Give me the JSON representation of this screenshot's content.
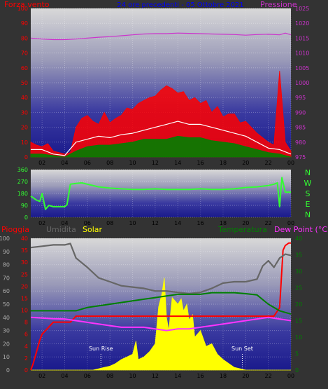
{
  "header": {
    "left_label": "Forza vento",
    "title": "24 ore precedenti - 05 Ottobre 2021",
    "right_label": "Pressione"
  },
  "direction_labels": [
    "N",
    "W",
    "S",
    "E",
    "N"
  ],
  "bottom_header": {
    "rain": "Pioggia",
    "humidity": "Umidita",
    "solar": "Solar",
    "temperature": "Temperatura",
    "dewpoint": "Dew Point (°C)"
  },
  "annotations": {
    "sunrise": "Sun Rise",
    "sunset": "Sun Set"
  },
  "colors": {
    "background": "#333333",
    "wind_gust": "#ff0000",
    "wind_avg": "#ffffff",
    "wind_min": "#008000",
    "pressure": "#cc33cc",
    "direction": "#33ff33",
    "rain": "#ff0000",
    "humidity": "#666666",
    "solar": "#ffff00",
    "temperature": "#008000",
    "dewpoint": "#ff33ff",
    "title": "#0000ff"
  },
  "chart_data": [
    {
      "type": "line",
      "title": "24 ore precedenti - 05 Ottobre 2021",
      "x_ticks": [
        "02",
        "04",
        "06",
        "08",
        "10",
        "12",
        "14",
        "16",
        "18",
        "20",
        "22",
        "00"
      ],
      "xlim": [
        1,
        24
      ],
      "ylabel": "Forza vento",
      "ylim": [
        0,
        100
      ],
      "y_ticks": [
        0,
        10,
        20,
        30,
        40,
        50,
        60,
        70,
        80,
        90,
        100
      ],
      "y2label": "Pressione",
      "y2lim": [
        975,
        1025
      ],
      "y2_ticks": [
        975,
        980,
        985,
        990,
        995,
        1000,
        1005,
        1010,
        1015,
        1020,
        1025
      ],
      "series": [
        {
          "name": "Pressione",
          "axis": "y2",
          "x": [
            1,
            2,
            3,
            4,
            5,
            6,
            7,
            8,
            9,
            10,
            11,
            12,
            13,
            14,
            15,
            16,
            17,
            18,
            19,
            20,
            21,
            22,
            23,
            23.5,
            24
          ],
          "values": [
            1015,
            1014.7,
            1014.5,
            1014.5,
            1014.7,
            1015,
            1015.3,
            1015.5,
            1015.8,
            1016.1,
            1016.4,
            1016.5,
            1016.5,
            1016.7,
            1016.6,
            1016.5,
            1016.4,
            1016.3,
            1016.2,
            1016,
            1016.2,
            1016.3,
            1016.1,
            1016.7,
            1016.1
          ]
        },
        {
          "name": "raffica",
          "x": [
            1,
            1.5,
            2,
            2.5,
            3,
            3.5,
            4,
            4.5,
            5,
            5.5,
            6,
            6.5,
            7,
            7.5,
            8,
            8.5,
            9,
            9.5,
            10,
            10.5,
            11,
            11.5,
            12,
            12.5,
            13,
            13.5,
            14,
            14.5,
            15,
            15.5,
            16,
            16.5,
            17,
            17.5,
            18,
            18.5,
            19,
            19.5,
            20,
            20.5,
            21,
            21.5,
            22,
            22.5,
            23,
            23.5,
            24
          ],
          "values": [
            10,
            8,
            7,
            9,
            4,
            3,
            2,
            3,
            20,
            26,
            28,
            24,
            22,
            30,
            23,
            26,
            28,
            33,
            32,
            36,
            38,
            40,
            41,
            45,
            48,
            46,
            43,
            44,
            38,
            40,
            36,
            38,
            30,
            34,
            27,
            29,
            29,
            23,
            24,
            20,
            16,
            13,
            10,
            8,
            58,
            10,
            4
          ]
        },
        {
          "name": "medio",
          "x": [
            1,
            2,
            3,
            4,
            5,
            6,
            7,
            8,
            9,
            10,
            11,
            12,
            13,
            14,
            15,
            16,
            17,
            18,
            19,
            20,
            21,
            22,
            23,
            24
          ],
          "values": [
            5,
            5,
            2,
            1,
            10,
            12,
            14,
            13,
            15,
            16,
            18,
            20,
            22,
            24,
            22,
            22,
            20,
            18,
            16,
            14,
            10,
            6,
            5,
            2
          ]
        },
        {
          "name": "min",
          "x": [
            1,
            2,
            3,
            4,
            5,
            6,
            7,
            8,
            9,
            10,
            11,
            12,
            13,
            14,
            15,
            16,
            17,
            18,
            19,
            20,
            21,
            22,
            23,
            24
          ],
          "values": [
            2,
            2,
            1,
            0,
            4,
            7,
            8,
            8,
            9,
            10,
            12,
            12,
            12,
            14,
            13,
            13,
            11,
            10,
            9,
            7,
            5,
            3,
            2,
            0
          ]
        }
      ]
    },
    {
      "type": "line",
      "ylabel": "direzione vento",
      "ylim": [
        0,
        360
      ],
      "y_ticks": [
        0,
        90,
        180,
        270,
        360
      ],
      "x_ticks": [
        "02",
        "04",
        "06",
        "08",
        "10",
        "12",
        "14",
        "16",
        "18",
        "20",
        "22",
        "00"
      ],
      "xlim": [
        1,
        24
      ],
      "series": [
        {
          "name": "Direzione",
          "x": [
            1,
            1.5,
            1.8,
            2,
            2.3,
            2.6,
            3,
            3.5,
            4,
            4.2,
            4.5,
            5,
            5.5,
            6,
            6.5,
            7,
            8,
            9,
            10,
            11,
            12,
            13,
            14,
            15,
            16,
            17,
            18,
            19,
            20,
            21,
            22,
            22.5,
            22.8,
            23,
            23.2,
            23.5,
            24
          ],
          "values": [
            160,
            130,
            120,
            180,
            60,
            90,
            80,
            80,
            80,
            95,
            250,
            255,
            260,
            250,
            240,
            230,
            220,
            215,
            210,
            210,
            215,
            210,
            210,
            210,
            215,
            210,
            210,
            215,
            225,
            230,
            240,
            250,
            260,
            80,
            300,
            190,
            190
          ]
        }
      ]
    },
    {
      "type": "line",
      "x_ticks": [
        "02",
        "04",
        "06",
        "08",
        "10",
        "12",
        "14",
        "16",
        "18",
        "20",
        "22",
        "00"
      ],
      "xlim": [
        1,
        24
      ],
      "axes": {
        "humidity": {
          "label": "Umidita",
          "lim": [
            0,
            100
          ],
          "ticks": [
            0,
            10,
            20,
            30,
            40,
            50,
            60,
            70,
            80,
            90,
            100
          ]
        },
        "rain": {
          "label": "Pioggia",
          "lim": [
            0,
            40
          ],
          "ticks": [
            0,
            2,
            4,
            6,
            8,
            10,
            15,
            20,
            25,
            30,
            35,
            40
          ]
        },
        "temperature": {
          "label": "Temperatura",
          "lim": [
            0,
            40
          ],
          "ticks": [
            0,
            5,
            10,
            15,
            20,
            25,
            30,
            35,
            40
          ]
        }
      },
      "series": [
        {
          "name": "Umidita",
          "axis": "humidity",
          "x": [
            1,
            2,
            3,
            4,
            4.5,
            5,
            6,
            7,
            8,
            9,
            10,
            11,
            12,
            13,
            14,
            15,
            16,
            17,
            18,
            19,
            20,
            21,
            21.5,
            22,
            22.5,
            23,
            23.5,
            24
          ],
          "values": [
            93,
            94,
            95,
            95,
            96,
            85,
            78,
            70,
            67,
            64,
            63,
            62,
            60,
            60,
            59,
            58,
            59,
            62,
            66,
            67,
            67,
            69,
            79,
            83,
            78,
            85,
            88,
            87
          ]
        },
        {
          "name": "Temperatura",
          "axis": "temperature",
          "x": [
            1,
            2,
            3,
            4,
            5,
            6,
            7,
            8,
            9,
            10,
            11,
            12,
            13,
            14,
            15,
            16,
            17,
            18,
            19,
            20,
            21,
            22,
            23,
            24
          ],
          "values": [
            18,
            18,
            18,
            18,
            18,
            19,
            19.5,
            20,
            20.5,
            21,
            21.5,
            22,
            22.5,
            23,
            23,
            23,
            23.5,
            23.5,
            23.5,
            23.2,
            22.8,
            20,
            18,
            17
          ]
        },
        {
          "name": "Dew Point",
          "axis": "temperature",
          "x": [
            1,
            2,
            3,
            4,
            5,
            6,
            7,
            8,
            9,
            10,
            11,
            12,
            13,
            14,
            15,
            16,
            17,
            18,
            19,
            20,
            21,
            22,
            23,
            24
          ],
          "values": [
            16,
            15.8,
            15.6,
            15.5,
            15,
            14.5,
            14,
            13.5,
            13,
            13,
            13,
            12.5,
            12,
            12.5,
            12.5,
            13,
            13.5,
            14,
            14.5,
            15,
            15.5,
            16,
            15.5,
            15
          ]
        },
        {
          "name": "Pioggia",
          "axis": "rain",
          "x": [
            1,
            1.2,
            1.5,
            1.8,
            2,
            2.5,
            3,
            3.5,
            4,
            4.5,
            5,
            22.5,
            23,
            23.3,
            23.5,
            23.8,
            24
          ],
          "values": [
            0,
            1,
            3,
            5,
            6,
            7,
            8,
            8,
            8,
            8,
            9,
            9,
            11,
            35,
            37,
            38,
            38
          ]
        },
        {
          "name": "Solar",
          "axis": "humidity",
          "x": [
            1,
            6.5,
            7,
            7.5,
            8,
            8.5,
            9,
            9.5,
            10,
            10.3,
            10.5,
            11,
            11.5,
            12,
            12.3,
            12.6,
            12.8,
            13,
            13.2,
            13.5,
            14,
            14.3,
            14.5,
            14.8,
            15,
            15.3,
            15.5,
            16,
            16.5,
            17,
            17.5,
            18,
            18.5,
            19,
            20,
            24
          ],
          "values": [
            0,
            0,
            1,
            2,
            3,
            5,
            8,
            10,
            12,
            22,
            8,
            10,
            14,
            20,
            48,
            58,
            70,
            40,
            30,
            55,
            50,
            54,
            45,
            50,
            38,
            42,
            25,
            30,
            18,
            20,
            12,
            8,
            5,
            2,
            0,
            0
          ]
        }
      ],
      "annotations": [
        {
          "text": "Sun Rise",
          "x": 7.2
        },
        {
          "text": "Sun Set",
          "x": 19.7
        }
      ]
    }
  ]
}
